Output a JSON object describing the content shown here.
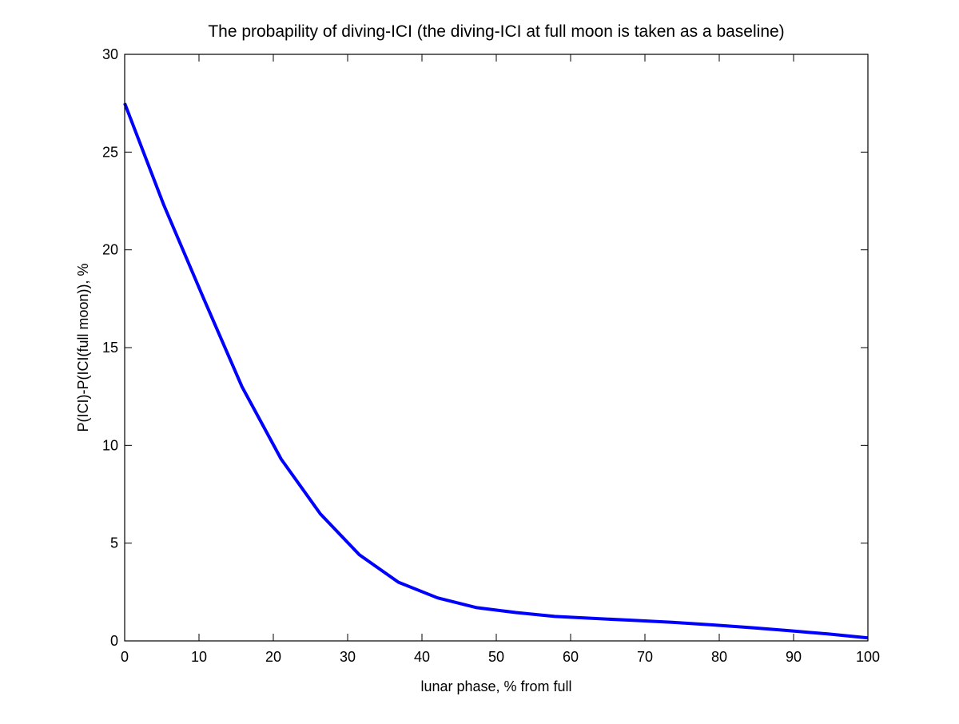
{
  "chart_data": {
    "type": "line",
    "title": "The probapility of diving-ICI (the diving-ICI at full moon is taken as a baseline)",
    "xlabel": "lunar phase, % from full",
    "ylabel": "P(ICI)-P(ICI(full moon)), %",
    "xlim": [
      0,
      100
    ],
    "ylim": [
      0,
      30
    ],
    "xticks": [
      0,
      10,
      20,
      30,
      40,
      50,
      60,
      70,
      80,
      90,
      100
    ],
    "yticks": [
      0,
      5,
      10,
      15,
      20,
      25,
      30
    ],
    "grid": false,
    "series": [
      {
        "name": "P(ICI)-P(ICI(full moon))",
        "color": "#0000ff",
        "x": [
          0,
          5.26,
          10.53,
          15.79,
          21.05,
          26.32,
          31.58,
          36.84,
          42.11,
          47.37,
          52.63,
          57.89,
          63.16,
          68.42,
          73.68,
          78.95,
          84.21,
          89.47,
          94.74,
          100
        ],
        "y": [
          27.5,
          22.3,
          17.6,
          13.0,
          9.3,
          6.5,
          4.4,
          3.0,
          2.2,
          1.7,
          1.45,
          1.25,
          1.15,
          1.05,
          0.95,
          0.82,
          0.68,
          0.52,
          0.35,
          0.15
        ]
      }
    ]
  }
}
